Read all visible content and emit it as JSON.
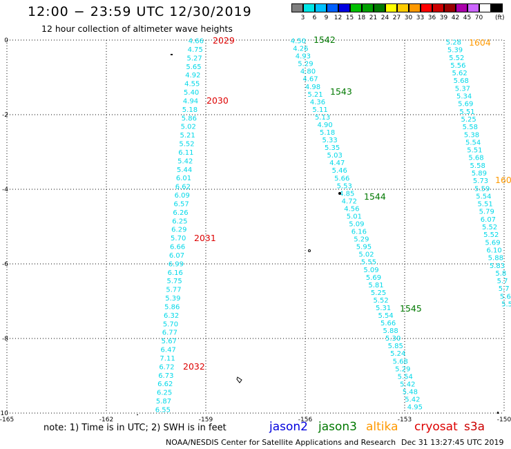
{
  "header": {
    "title": "12:00 − 23:59 UTC 12/30/2019",
    "subtitle": "12 hour collection of altimeter wave heights"
  },
  "colorbar": {
    "colors": [
      "#7f7f7f",
      "#00e5e5",
      "#00c0ff",
      "#0060ff",
      "#0000e0",
      "#00c000",
      "#00a000",
      "#007800",
      "#ffff00",
      "#ffcc00",
      "#ff9900",
      "#ff0000",
      "#cc0000",
      "#990000",
      "#aa00aa",
      "#cc66ff",
      "#ffffff",
      "#000000"
    ],
    "labels": [
      "3",
      "6",
      "9",
      "12",
      "15",
      "18",
      "21",
      "24",
      "27",
      "30",
      "33",
      "36",
      "39",
      "42",
      "45",
      "70"
    ],
    "unit": "(ft)"
  },
  "map": {
    "x_axis": {
      "ticks": [
        "-165",
        "-162",
        "-159",
        "-156",
        "-153",
        "-150"
      ]
    },
    "y_axis": {
      "ticks": [
        "0",
        "-2",
        "-4",
        "-6",
        "-8",
        "-10"
      ]
    },
    "tracks": [
      {
        "satellite": "jason3",
        "color": "#00d8e8",
        "values": [
          "4.66",
          "4.75",
          "5.27",
          "5.65",
          "4.92",
          "4.55",
          "5.40",
          "4.94",
          "5.18",
          "5.86",
          "5.02",
          "5.21",
          "5.52",
          "6.11",
          "5.42",
          "5.44",
          "6.01",
          "6.62",
          "6.09",
          "6.57",
          "6.26",
          "6.25",
          "6.29",
          "5.70",
          "6.66",
          "6.07",
          "6.99",
          "6.16",
          "5.75",
          "5.77",
          "5.39",
          "5.86",
          "6.32",
          "5.70",
          "6.77",
          "5.67",
          "6.47",
          "7.11",
          "6.72",
          "6.73",
          "6.62",
          "6.25",
          "5.87",
          "6.55"
        ]
      },
      {
        "satellite": "jason3",
        "color": "#00d8e8",
        "values": [
          "4.50",
          "4.26",
          "4.93",
          "5.29",
          "4.80",
          "4.67",
          "4.98",
          "5.21",
          "4.36",
          "5.11",
          "5.13",
          "4.90",
          "5.18",
          "5.33",
          "5.35",
          "5.03",
          "4.47",
          "5.46",
          "5.66",
          "5.53",
          "4.85",
          "4.72",
          "4.56",
          "5.01",
          "5.09",
          "6.16",
          "5.29",
          "5.95",
          "5.02",
          "5.55",
          "5.09",
          "5.69",
          "5.81",
          "5.25",
          "5.52",
          "5.31",
          "5.54",
          "5.66",
          "5.88",
          "5.30",
          "5.85",
          "5.24",
          "5.68",
          "5.29",
          "5.54",
          "5.42",
          "5.48",
          "5.42",
          "4.95"
        ]
      },
      {
        "satellite": "jason3",
        "color": "#00d8e8",
        "values": [
          "5.28",
          "5.39",
          "5.52",
          "5.56",
          "5.62",
          "5.68",
          "5.37",
          "5.34",
          "5.69",
          "5.51",
          "5.25",
          "5.58",
          "5.38",
          "5.54",
          "5.51",
          "5.68",
          "5.58",
          "5.89",
          "5.73",
          "5.59",
          "5.54",
          "5.51",
          "5.79",
          "6.07",
          "5.52",
          "5.52",
          "5.69",
          "6.10",
          "5.88",
          "5.83",
          "5.8",
          "5.7",
          "5.7",
          "5.6",
          "5.5"
        ]
      }
    ],
    "time_labels": [
      {
        "text": "2029",
        "color": "#dd0000"
      },
      {
        "text": "2030",
        "color": "#dd0000"
      },
      {
        "text": "2031",
        "color": "#dd0000"
      },
      {
        "text": "2032",
        "color": "#dd0000"
      },
      {
        "text": "1542",
        "color": "#007800"
      },
      {
        "text": "1543",
        "color": "#007800"
      },
      {
        "text": "1544",
        "color": "#007800"
      },
      {
        "text": "1545",
        "color": "#007800"
      },
      {
        "text": "1604",
        "color": "#ff9900"
      },
      {
        "text": "160",
        "color": "#ff9900"
      }
    ]
  },
  "footer": {
    "note": "note:  1) Time is in UTC;  2) SWH is in feet",
    "satellites": [
      {
        "name": "jason2",
        "color": "#0000dd"
      },
      {
        "name": "jason3",
        "color": "#007800"
      },
      {
        "name": "altika",
        "color": "#ff9900"
      },
      {
        "name": "cryosat",
        "color": "#dd0000"
      },
      {
        "name": "s3a",
        "color": "#cc0000"
      }
    ],
    "credit": "NOAA/NESDIS Center for Satellite Applications and Research",
    "timestamp": "Dec 31 13:27:45 UTC 2019"
  }
}
